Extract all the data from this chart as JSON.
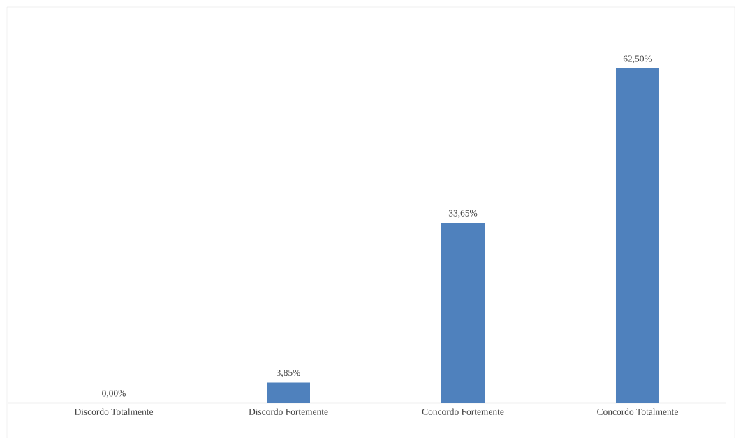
{
  "chart_data": {
    "type": "bar",
    "categories": [
      "Discordo Totalmente",
      "Discordo Fortemente",
      "Concordo Fortemente",
      "Concordo Totalmente"
    ],
    "values": [
      0,
      3.85,
      33.65,
      62.5
    ],
    "value_labels": [
      "0,00%",
      "3,85%",
      "33,65%",
      "62,50%"
    ],
    "color": "#4f81bd"
  }
}
